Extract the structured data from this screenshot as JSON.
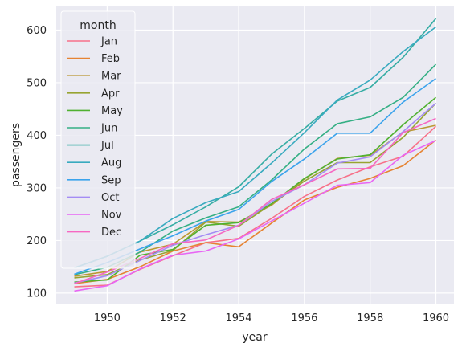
{
  "chart_data": {
    "type": "line",
    "title": "",
    "xlabel": "year",
    "ylabel": "passengers",
    "legend_title": "month",
    "legend_position": "top-left",
    "grid": true,
    "x": [
      1949,
      1950,
      1951,
      1952,
      1953,
      1954,
      1955,
      1956,
      1957,
      1958,
      1959,
      1960
    ],
    "xlim": [
      1948.45,
      1960.55
    ],
    "ylim": [
      80,
      645
    ],
    "xticks": [
      1950,
      1952,
      1954,
      1956,
      1958,
      1960
    ],
    "yticks": [
      100,
      200,
      300,
      400,
      500,
      600
    ],
    "series": [
      {
        "name": "Jan",
        "color": "#f77189",
        "values": [
          112,
          115,
          145,
          171,
          196,
          204,
          242,
          284,
          315,
          340,
          360,
          417
        ]
      },
      {
        "name": "Feb",
        "color": "#e68332",
        "values": [
          118,
          126,
          150,
          180,
          196,
          188,
          233,
          277,
          301,
          318,
          342,
          391
        ]
      },
      {
        "name": "Mar",
        "color": "#bb9832",
        "values": [
          132,
          141,
          178,
          193,
          236,
          235,
          267,
          317,
          356,
          362,
          406,
          419
        ]
      },
      {
        "name": "Apr",
        "color": "#97a431",
        "values": [
          129,
          135,
          163,
          181,
          235,
          227,
          269,
          313,
          348,
          348,
          396,
          461
        ]
      },
      {
        "name": "May",
        "color": "#50b131",
        "values": [
          121,
          125,
          172,
          183,
          229,
          234,
          270,
          318,
          355,
          363,
          420,
          472
        ]
      },
      {
        "name": "Jun",
        "color": "#34af84",
        "values": [
          135,
          149,
          178,
          218,
          243,
          264,
          315,
          374,
          422,
          435,
          472,
          535
        ]
      },
      {
        "name": "Jul",
        "color": "#36ada4",
        "values": [
          148,
          170,
          199,
          230,
          264,
          302,
          364,
          413,
          465,
          491,
          548,
          622
        ]
      },
      {
        "name": "Aug",
        "color": "#38aabf",
        "values": [
          148,
          170,
          199,
          242,
          272,
          293,
          347,
          405,
          467,
          505,
          559,
          606
        ]
      },
      {
        "name": "Sep",
        "color": "#3ba3ec",
        "values": [
          136,
          158,
          184,
          209,
          237,
          259,
          312,
          355,
          404,
          404,
          463,
          508
        ]
      },
      {
        "name": "Oct",
        "color": "#a48cf4",
        "values": [
          119,
          133,
          162,
          191,
          211,
          229,
          274,
          306,
          347,
          359,
          407,
          461
        ]
      },
      {
        "name": "Nov",
        "color": "#e866f4",
        "values": [
          104,
          114,
          146,
          172,
          180,
          203,
          237,
          271,
          305,
          310,
          362,
          390
        ]
      },
      {
        "name": "Dec",
        "color": "#f668c2",
        "values": [
          118,
          140,
          166,
          194,
          201,
          229,
          278,
          306,
          336,
          337,
          405,
          432
        ]
      }
    ]
  }
}
